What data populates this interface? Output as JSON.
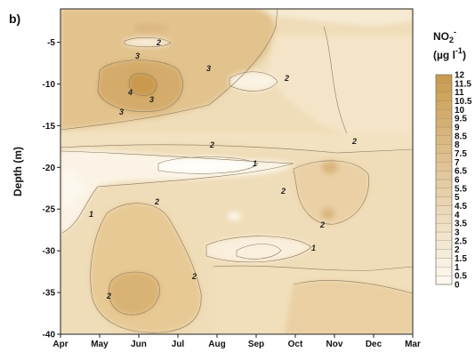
{
  "chart_data": {
    "type": "heatmap",
    "panel_label": "b)",
    "ylabel": "Depth (m)",
    "xlabel": "",
    "x_categories": [
      "Apr",
      "May",
      "Jun",
      "Jul",
      "Aug",
      "Sep",
      "Oct",
      "Nov",
      "Dec",
      "Mar"
    ],
    "y_ticks": [
      -5,
      -10,
      -15,
      -20,
      -25,
      -30,
      -35,
      -40
    ],
    "ylim": [
      -40,
      -1
    ],
    "colorbar": {
      "title_main": "NO",
      "title_sub": "2",
      "title_sup": "-",
      "unit_open": "(µg l",
      "unit_sup": "-1",
      "unit_close": ")",
      "levels": [
        0,
        0.5,
        1,
        1.5,
        2,
        2.5,
        3,
        3.5,
        4,
        4.5,
        5,
        5.5,
        6,
        6.5,
        7,
        7.5,
        8,
        8.5,
        9,
        9.5,
        10,
        10.5,
        11,
        11.5,
        12
      ],
      "level_labels": [
        "0",
        "0.5",
        "1",
        "1.5",
        "2",
        "2.5",
        "3",
        "3.5",
        "4",
        "4.5",
        "5",
        "5.5",
        "6",
        "6.5",
        "7",
        "7.5",
        "8",
        "8.5",
        "9",
        "9.5",
        "10",
        "10.5",
        "11",
        "11.5",
        "12"
      ],
      "color_low": "#fdfaf3",
      "color_high": "#c99a4d"
    },
    "contour_labels": [
      "2",
      "3",
      "3",
      "4",
      "3",
      "3",
      "2",
      "2",
      "1",
      "2",
      "2",
      "1",
      "2",
      "2",
      "2",
      "2",
      "1"
    ]
  }
}
